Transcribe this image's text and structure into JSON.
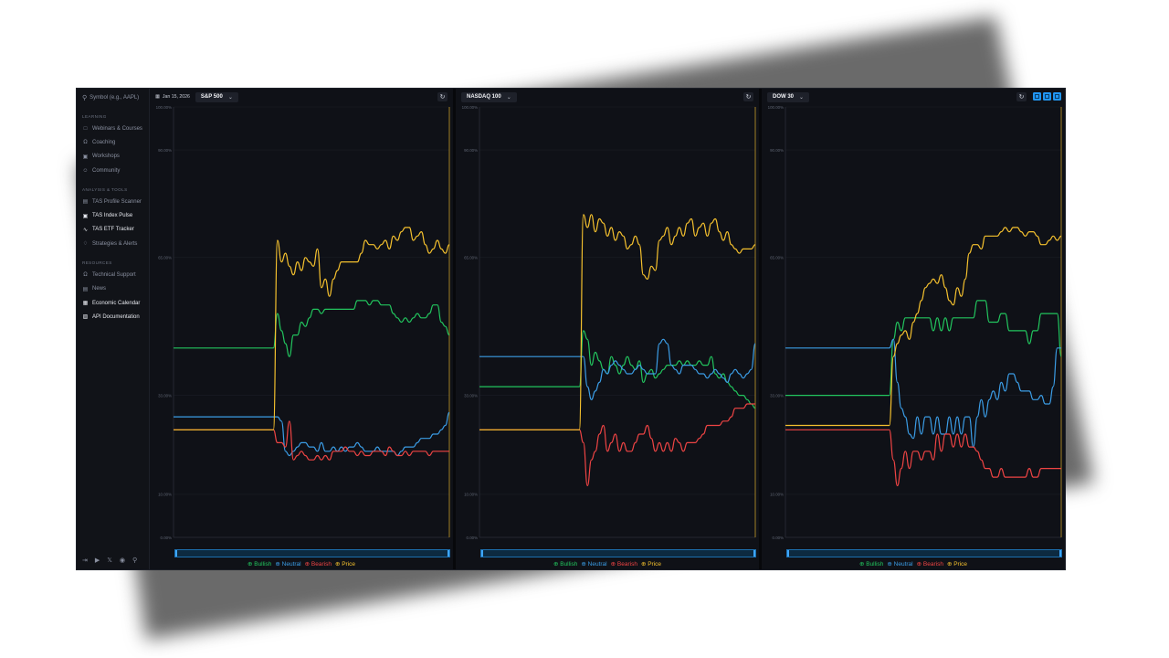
{
  "sidebar": {
    "search_placeholder": "Symbol (e.g., AAPL)",
    "sections": [
      {
        "title": "LEARNING",
        "items": [
          {
            "label": "Webinars & Courses",
            "icon": "book-icon",
            "active": false
          },
          {
            "label": "Coaching",
            "icon": "headphones-icon",
            "active": false
          },
          {
            "label": "Workshops",
            "icon": "video-icon",
            "active": false
          },
          {
            "label": "Community",
            "icon": "users-icon",
            "active": false
          }
        ]
      },
      {
        "title": "ANALYSIS & TOOLS",
        "items": [
          {
            "label": "TAS Profile Scanner",
            "icon": "bar-chart-icon",
            "active": false
          },
          {
            "label": "TAS Index Pulse",
            "icon": "scan-icon",
            "active": true
          },
          {
            "label": "TAS ETF Tracker",
            "icon": "activity-icon",
            "active": true
          },
          {
            "label": "Strategies & Alerts",
            "icon": "bell-icon",
            "active": false
          }
        ]
      },
      {
        "title": "RESOURCES",
        "items": [
          {
            "label": "Technical Support",
            "icon": "headset-icon",
            "active": false
          },
          {
            "label": "News",
            "icon": "newspaper-icon",
            "active": false
          },
          {
            "label": "Economic Calendar",
            "icon": "calendar-icon",
            "active": true
          },
          {
            "label": "API Documentation",
            "icon": "document-icon",
            "active": true
          }
        ]
      }
    ],
    "footer_icons": [
      "logout-icon",
      "youtube-icon",
      "x-icon",
      "globe-icon",
      "lightbulb-icon"
    ]
  },
  "panels": [
    {
      "date": "Jan 15, 2026",
      "index": "S&P 500"
    },
    {
      "date": "",
      "index": "NASDAQ 100"
    },
    {
      "date": "",
      "index": "DOW 30"
    }
  ],
  "legend": {
    "bullish": "Bullish",
    "neutral": "Neutral",
    "bearish": "Bearish",
    "price": "Price"
  },
  "colors": {
    "bullish": "#22c55e",
    "neutral": "#3b9de6",
    "bearish": "#ef4444",
    "price": "#f5c12e",
    "accent": "#2196f3"
  },
  "chart_data": [
    {
      "type": "line",
      "yticks": [
        "100.00%",
        "90.00%",
        "65.00%",
        "33.00%",
        "10.00%",
        "0.00%"
      ],
      "series": [
        {
          "name": "Bullish",
          "values": [
            44,
            44,
            44,
            44,
            44,
            44,
            44,
            44,
            44,
            44,
            44,
            44,
            44,
            44,
            44,
            44,
            44,
            44,
            44,
            44,
            44,
            44,
            44,
            44,
            44,
            44,
            52,
            48,
            45,
            42,
            47,
            47,
            50,
            49,
            51,
            53,
            53,
            52,
            53,
            53,
            53,
            53,
            53,
            53,
            53,
            53,
            55,
            55,
            55,
            54,
            55,
            55,
            54,
            54,
            54,
            52,
            51,
            50,
            51,
            50,
            51,
            52,
            51,
            51,
            52,
            54,
            54,
            50,
            49,
            47
          ]
        },
        {
          "name": "Neutral",
          "values": [
            28,
            28,
            28,
            28,
            28,
            28,
            28,
            28,
            28,
            28,
            28,
            28,
            28,
            28,
            28,
            28,
            28,
            28,
            28,
            28,
            28,
            28,
            28,
            28,
            28,
            28,
            28,
            27,
            20,
            19,
            20,
            21,
            22,
            22,
            21,
            21,
            20,
            22,
            20,
            20,
            21,
            20,
            21,
            20,
            21,
            21,
            22,
            21,
            20,
            20,
            20,
            21,
            20,
            20,
            20,
            20,
            19,
            20,
            21,
            21,
            21,
            22,
            23,
            23,
            23,
            24,
            24,
            25,
            26,
            29
          ]
        },
        {
          "name": "Bearish",
          "values": [
            25,
            25,
            25,
            25,
            25,
            25,
            25,
            25,
            25,
            25,
            25,
            25,
            25,
            25,
            25,
            25,
            25,
            25,
            25,
            25,
            25,
            25,
            25,
            25,
            25,
            25,
            22,
            22,
            21,
            27,
            18,
            19,
            20,
            19,
            18,
            18,
            19,
            18,
            19,
            18,
            20,
            20,
            20,
            21,
            20,
            20,
            19,
            20,
            19,
            19,
            20,
            20,
            20,
            19,
            21,
            20,
            19,
            19,
            20,
            19,
            20,
            20,
            20,
            20,
            19,
            20,
            20,
            20,
            20,
            20
          ]
        },
        {
          "name": "Price",
          "values": [
            25,
            25,
            25,
            25,
            25,
            25,
            25,
            25,
            25,
            25,
            25,
            25,
            25,
            25,
            25,
            25,
            25,
            25,
            25,
            25,
            25,
            25,
            25,
            25,
            25,
            25,
            69,
            64,
            66,
            63,
            61,
            64,
            62,
            65,
            64,
            63,
            67,
            58,
            60,
            56,
            60,
            62,
            64,
            64,
            64,
            64,
            64,
            66,
            69,
            68,
            68,
            67,
            68,
            69,
            67,
            70,
            69,
            71,
            72,
            72,
            69,
            70,
            71,
            68,
            66,
            67,
            69,
            67,
            66,
            68
          ]
        }
      ]
    },
    {
      "type": "line",
      "yticks": [
        "100.00%",
        "90.00%",
        "65.00%",
        "33.00%",
        "10.00%",
        "0.00%"
      ],
      "series": [
        {
          "name": "Bullish",
          "values": [
            35,
            35,
            35,
            35,
            35,
            35,
            35,
            35,
            35,
            35,
            35,
            35,
            35,
            35,
            35,
            35,
            35,
            35,
            35,
            35,
            35,
            35,
            35,
            35,
            35,
            35,
            48,
            46,
            40,
            43,
            41,
            39,
            38,
            42,
            40,
            38,
            40,
            42,
            40,
            39,
            41,
            36,
            38,
            39,
            37,
            38,
            39,
            40,
            40,
            40,
            41,
            40,
            41,
            40,
            40,
            41,
            40,
            40,
            42,
            38,
            37,
            38,
            36,
            35,
            34,
            33,
            33,
            32,
            31,
            30
          ]
        },
        {
          "name": "Neutral",
          "values": [
            42,
            42,
            42,
            42,
            42,
            42,
            42,
            42,
            42,
            42,
            42,
            42,
            42,
            42,
            42,
            42,
            42,
            42,
            42,
            42,
            42,
            42,
            42,
            42,
            42,
            42,
            42,
            35,
            32,
            34,
            36,
            39,
            38,
            40,
            41,
            40,
            39,
            38,
            38,
            39,
            40,
            39,
            38,
            38,
            38,
            45,
            46,
            45,
            40,
            39,
            38,
            40,
            40,
            40,
            39,
            38,
            38,
            37,
            38,
            39,
            38,
            37,
            36,
            38,
            39,
            38,
            37,
            38,
            39,
            45
          ]
        },
        {
          "name": "Bearish",
          "values": [
            25,
            25,
            25,
            25,
            25,
            25,
            25,
            25,
            25,
            25,
            25,
            25,
            25,
            25,
            25,
            25,
            25,
            25,
            25,
            25,
            25,
            25,
            25,
            25,
            25,
            25,
            22,
            12,
            18,
            20,
            24,
            26,
            20,
            22,
            24,
            20,
            22,
            20,
            20,
            22,
            24,
            24,
            26,
            23,
            20,
            22,
            20,
            22,
            20,
            23,
            22,
            20,
            22,
            22,
            22,
            23,
            24,
            26,
            26,
            26,
            26,
            27,
            27,
            28,
            30,
            30,
            30,
            31,
            31,
            31
          ]
        },
        {
          "name": "Price",
          "values": [
            25,
            25,
            25,
            25,
            25,
            25,
            25,
            25,
            25,
            25,
            25,
            25,
            25,
            25,
            25,
            25,
            25,
            25,
            25,
            25,
            25,
            25,
            25,
            25,
            25,
            25,
            75,
            72,
            75,
            71,
            74,
            73,
            70,
            72,
            69,
            71,
            70,
            67,
            68,
            70,
            68,
            61,
            60,
            63,
            62,
            69,
            70,
            72,
            68,
            70,
            72,
            70,
            73,
            74,
            70,
            72,
            73,
            70,
            73,
            74,
            71,
            69,
            71,
            68,
            67,
            66,
            67,
            67,
            67,
            68
          ]
        }
      ]
    },
    {
      "type": "line",
      "yticks": [
        "100.00%",
        "90.00%",
        "65.00%",
        "33.00%",
        "10.00%",
        "0.00%"
      ],
      "series": [
        {
          "name": "Bullish",
          "values": [
            33,
            33,
            33,
            33,
            33,
            33,
            33,
            33,
            33,
            33,
            33,
            33,
            33,
            33,
            33,
            33,
            33,
            33,
            33,
            33,
            33,
            33,
            33,
            33,
            33,
            33,
            33,
            46,
            50,
            48,
            51,
            51,
            51,
            51,
            51,
            51,
            51,
            48,
            51,
            48,
            51,
            48,
            51,
            51,
            51,
            51,
            51,
            51,
            55,
            55,
            55,
            50,
            50,
            50,
            52,
            52,
            48,
            48,
            48,
            48,
            48,
            45,
            48,
            48,
            52,
            52,
            52,
            52,
            52,
            42
          ]
        },
        {
          "name": "Neutral",
          "values": [
            44,
            44,
            44,
            44,
            44,
            44,
            44,
            44,
            44,
            44,
            44,
            44,
            44,
            44,
            44,
            44,
            44,
            44,
            44,
            44,
            44,
            44,
            44,
            44,
            44,
            44,
            44,
            46,
            36,
            30,
            28,
            24,
            23,
            28,
            24,
            28,
            28,
            24,
            28,
            24,
            24,
            28,
            24,
            28,
            24,
            28,
            28,
            21,
            28,
            32,
            28,
            32,
            34,
            32,
            36,
            34,
            38,
            38,
            36,
            34,
            34,
            34,
            32,
            32,
            33,
            31,
            31,
            35,
            44,
            44
          ]
        },
        {
          "name": "Bearish",
          "values": [
            25,
            25,
            25,
            25,
            25,
            25,
            25,
            25,
            25,
            25,
            25,
            25,
            25,
            25,
            25,
            25,
            25,
            25,
            25,
            25,
            25,
            25,
            25,
            25,
            25,
            25,
            25,
            18,
            12,
            16,
            20,
            16,
            20,
            20,
            18,
            20,
            20,
            18,
            24,
            20,
            24,
            24,
            21,
            24,
            21,
            24,
            21,
            21,
            20,
            18,
            16,
            16,
            14,
            14,
            16,
            14,
            14,
            14,
            14,
            14,
            14,
            16,
            14,
            14,
            16,
            16,
            16,
            16,
            16,
            16
          ]
        },
        {
          "name": "Price",
          "values": [
            26,
            26,
            26,
            26,
            26,
            26,
            26,
            26,
            26,
            26,
            26,
            26,
            26,
            26,
            26,
            26,
            26,
            26,
            26,
            26,
            26,
            26,
            26,
            26,
            26,
            26,
            26,
            42,
            45,
            47,
            48,
            46,
            50,
            52,
            55,
            58,
            59,
            60,
            59,
            61,
            58,
            55,
            54,
            58,
            56,
            60,
            66,
            68,
            68,
            67,
            70,
            70,
            70,
            70,
            71,
            72,
            71,
            72,
            72,
            71,
            70,
            71,
            71,
            70,
            68,
            68,
            69,
            70,
            69,
            70
          ]
        }
      ]
    }
  ]
}
